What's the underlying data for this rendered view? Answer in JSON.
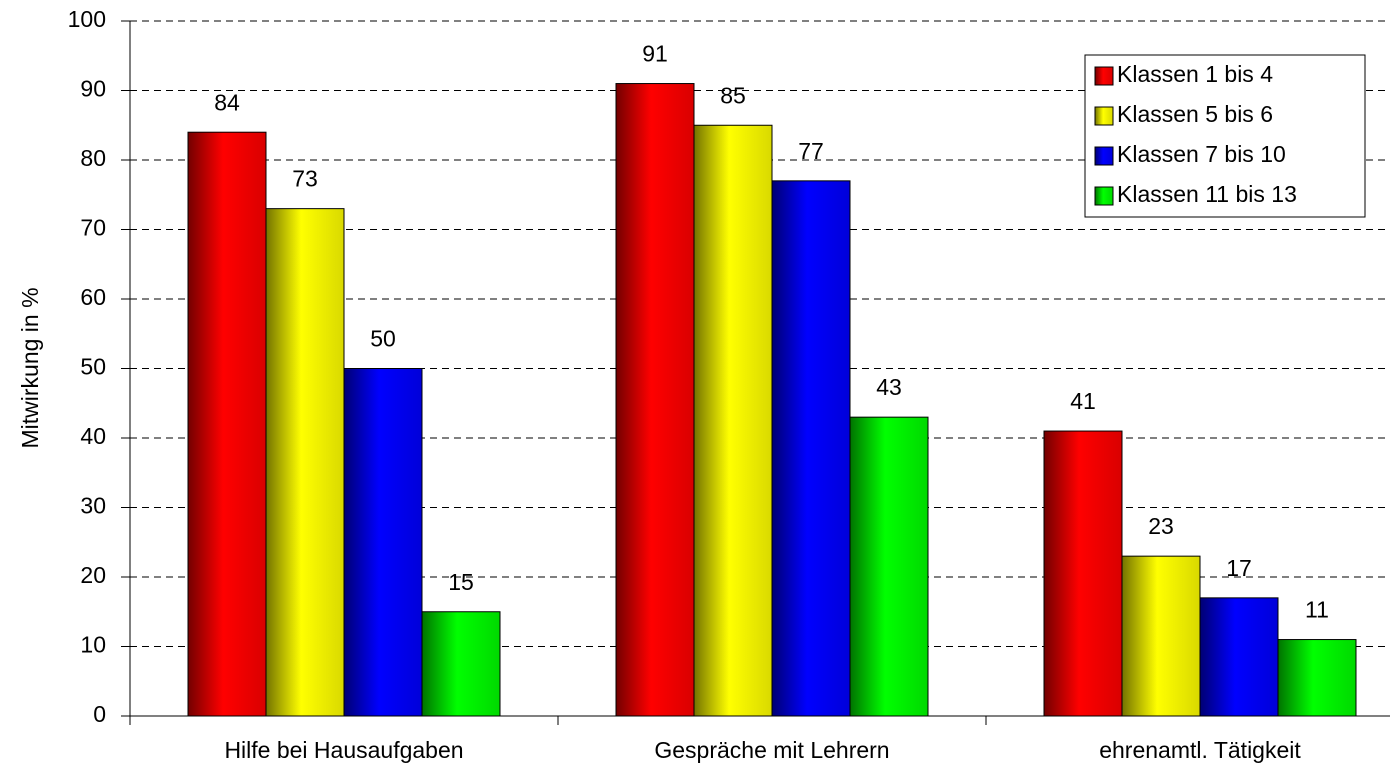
{
  "chart_data": {
    "type": "bar",
    "y_label": "Mitwirkung in %",
    "categories": [
      "Hilfe bei Hausaufgaben",
      "Gespräche mit Lehrern",
      "ehrenamtl. Tätigkeit"
    ],
    "series": [
      {
        "name": "Klassen 1 bis 4",
        "color": "#ff0000",
        "values": [
          84,
          91,
          41
        ]
      },
      {
        "name": "Klassen 5 bis 6",
        "color": "#ffff00",
        "values": [
          73,
          85,
          23
        ]
      },
      {
        "name": "Klassen 7 bis 10",
        "color": "#0000ff",
        "values": [
          50,
          77,
          17
        ]
      },
      {
        "name": "Klassen 11 bis 13",
        "color": "#00ff00",
        "values": [
          15,
          43,
          11
        ]
      }
    ],
    "ylim": [
      0,
      100
    ],
    "yticks": [
      0,
      10,
      20,
      30,
      40,
      50,
      60,
      70,
      80,
      90,
      100
    ],
    "grid": true,
    "legend": "upper right"
  }
}
